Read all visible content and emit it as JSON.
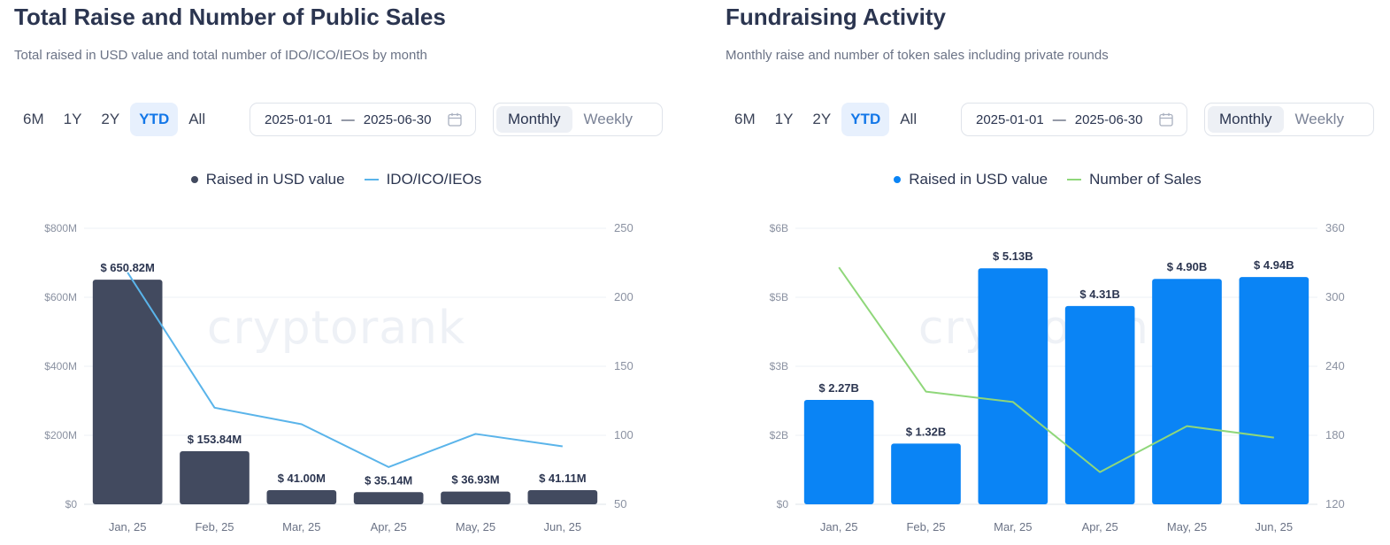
{
  "panels": [
    {
      "title": "Total Raise and Number of Public Sales",
      "subtitle": "Total raised in USD value and total number of IDO/ICO/IEOs by month",
      "ranges": [
        "6M",
        "1Y",
        "2Y",
        "YTD",
        "All"
      ],
      "active_range": "YTD",
      "date_from": "2025-01-01",
      "date_to": "2025-06-30",
      "intervals": [
        "Monthly",
        "Weekly"
      ],
      "active_interval": "Monthly",
      "watermark": "cryptorank"
    },
    {
      "title": "Fundraising Activity",
      "subtitle": "Monthly raise and number of token sales including private rounds",
      "ranges": [
        "6M",
        "1Y",
        "2Y",
        "YTD",
        "All"
      ],
      "active_range": "YTD",
      "date_from": "2025-01-01",
      "date_to": "2025-06-30",
      "intervals": [
        "Monthly",
        "Weekly"
      ],
      "active_interval": "Monthly",
      "watermark": "cryptorank"
    }
  ],
  "chart_data": [
    {
      "type": "bar",
      "categories": [
        "Jan, 25",
        "Feb, 25",
        "Mar, 25",
        "Apr, 25",
        "May, 25",
        "Jun, 25"
      ],
      "series": [
        {
          "name": "Raised in USD value",
          "type": "bar",
          "axis": "left",
          "color": "#424a5f",
          "values": [
            650.82,
            153.84,
            41.0,
            35.14,
            36.93,
            41.11
          ],
          "labels": [
            "$ 650.82M",
            "$ 153.84M",
            "$ 41.00M",
            "$ 35.14M",
            "$ 36.93M",
            "$ 41.11M"
          ]
        },
        {
          "name": "IDO/ICO/IEOs",
          "type": "line",
          "axis": "right",
          "color": "#5ab4ea",
          "values": [
            218,
            120,
            108,
            77,
            101,
            92
          ]
        }
      ],
      "y_left": {
        "min": 0,
        "max": 800,
        "ticks": [
          0,
          200,
          400,
          600,
          800
        ],
        "tick_labels": [
          "$0",
          "$200M",
          "$400M",
          "$600M",
          "$800M"
        ]
      },
      "y_right": {
        "min": 50,
        "max": 250,
        "ticks": [
          50,
          100,
          150,
          200,
          250
        ],
        "tick_labels": [
          "50",
          "100",
          "150",
          "200",
          "250"
        ]
      },
      "grid": true,
      "legend": "top-center"
    },
    {
      "type": "bar",
      "categories": [
        "Jan, 25",
        "Feb, 25",
        "Mar, 25",
        "Apr, 25",
        "May, 25",
        "Jun, 25"
      ],
      "series": [
        {
          "name": "Raised in USD value",
          "type": "bar",
          "axis": "left",
          "color": "#0a84f5",
          "values": [
            2.27,
            1.32,
            5.13,
            4.31,
            4.9,
            4.94
          ],
          "labels": [
            "$ 2.27B",
            "$ 1.32B",
            "$ 5.13B",
            "$ 4.31B",
            "$ 4.90B",
            "$ 4.94B"
          ]
        },
        {
          "name": "Number of Sales",
          "type": "line",
          "axis": "right",
          "color": "#8fd77a",
          "values": [
            326,
            218,
            209,
            148,
            188,
            178
          ]
        }
      ],
      "y_left": {
        "min": 0,
        "max": 6,
        "ticks": [
          0,
          1.5,
          3,
          4.5,
          6
        ],
        "tick_labels": [
          "$0",
          "$2B",
          "$3B",
          "$5B",
          "$6B"
        ]
      },
      "y_right": {
        "min": 120,
        "max": 360,
        "ticks": [
          120,
          180,
          240,
          300,
          360
        ],
        "tick_labels": [
          "120",
          "180",
          "240",
          "300",
          "360"
        ]
      },
      "grid": true,
      "legend": "top-center"
    }
  ]
}
